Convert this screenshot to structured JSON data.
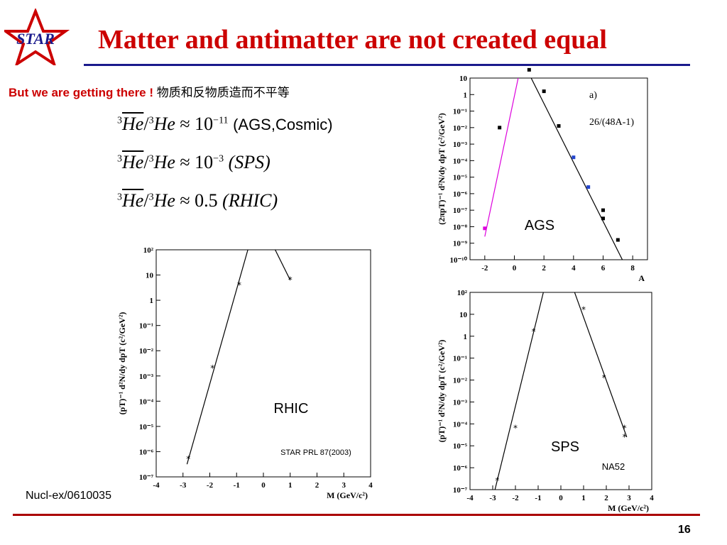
{
  "logo": {
    "text": "STAR"
  },
  "title": "Matter and antimatter are not created equal",
  "subtitle": {
    "en": "But we are getting there !",
    "cn": "物质和反物质造而不平等"
  },
  "equations": [
    {
      "lhs_mass": "3",
      "lhs_sym": "He",
      "rhs_mass": "3",
      "rhs_sym": "He",
      "approx": "≈",
      "base": "10",
      "exp": "−11",
      "note": "(AGS,Cosmic)"
    },
    {
      "lhs_mass": "3",
      "lhs_sym": "He",
      "rhs_mass": "3",
      "rhs_sym": "He",
      "approx": "≈",
      "base": "10",
      "exp": "−3",
      "note": "(SPS)"
    },
    {
      "lhs_mass": "3",
      "lhs_sym": "He",
      "rhs_mass": "3",
      "rhs_sym": "He",
      "approx": "≈",
      "base": "0.5",
      "exp": "",
      "note": "(RHIC)"
    }
  ],
  "footnote": "Nucl-ex/0610035",
  "page_number": "16",
  "chart_data": [
    {
      "id": "rhic",
      "type": "scatter",
      "label": "RHIC",
      "reference": "STAR PRL 87(2003)",
      "xlabel": "M (GeV/c²)",
      "ylabel": "(pT)⁻¹ d²N/dy dpT (c²/GeV²)",
      "xlim": [
        -4,
        4
      ],
      "ylim_log10": [
        -7,
        2
      ],
      "x_ticks": [
        "-4",
        "-3",
        "-2",
        "-1",
        "0",
        "1",
        "2",
        "3",
        "4"
      ],
      "y_ticks": [
        "10²",
        "10",
        "1",
        "10⁻¹",
        "10⁻²",
        "10⁻³",
        "10⁻⁴",
        "10⁻⁵",
        "10⁻⁶",
        "10⁻⁷"
      ],
      "points": [
        {
          "x": -2.8,
          "y_log10": -6.3
        },
        {
          "x": -1.9,
          "y_log10": -2.7
        },
        {
          "x": -0.9,
          "y_log10": 0.6
        },
        {
          "x": 1.0,
          "y_log10": 0.8
        }
      ],
      "lines": [
        [
          {
            "x": -2.85,
            "y_log10": -6.5
          },
          {
            "x": -0.5,
            "y_log10": 2.3
          }
        ],
        [
          {
            "x": 0.3,
            "y_log10": 2.3
          },
          {
            "x": 1.0,
            "y_log10": 0.8
          }
        ]
      ]
    },
    {
      "id": "ags",
      "type": "scatter",
      "label": "AGS",
      "panel_tag": "a)",
      "fit_note": "26/(48A-1)",
      "xlabel": "A",
      "ylabel": "(2πpT)⁻¹ d²N/dy dpT (c²/GeV²)",
      "xlim": [
        -3,
        9
      ],
      "ylim_log10": [
        -10,
        1
      ],
      "x_ticks": [
        "-2",
        "0",
        "2",
        "4",
        "6",
        "8"
      ],
      "y_ticks": [
        "10",
        "1",
        "10⁻¹",
        "10⁻²",
        "10⁻³",
        "10⁻⁴",
        "10⁻⁵",
        "10⁻⁶",
        "10⁻⁷",
        "10⁻⁸",
        "10⁻⁹",
        "10⁻¹⁰"
      ],
      "series": [
        {
          "name": "matter",
          "color": "#000000",
          "points": [
            {
              "x": 1,
              "y_log10": 1.5
            },
            {
              "x": 2,
              "y_log10": 0.2
            },
            {
              "x": 3,
              "y_log10": -1.9
            },
            {
              "x": 6,
              "y_log10": -7.0
            },
            {
              "x": 6,
              "y_log10": -7.5
            },
            {
              "x": 7,
              "y_log10": -8.8
            },
            {
              "x": -1,
              "y_log10": -2.0
            }
          ]
        },
        {
          "name": "blue",
          "color": "#2244cc",
          "points": [
            {
              "x": 4,
              "y_log10": -3.8
            },
            {
              "x": 5,
              "y_log10": -5.6
            }
          ]
        },
        {
          "name": "antimatter",
          "color": "#dd00dd",
          "points": [
            {
              "x": -2,
              "y_log10": -8.1
            }
          ]
        }
      ],
      "lines": [
        {
          "color": "#000000",
          "points": [
            {
              "x": 0.8,
              "y_log10": 1.6
            },
            {
              "x": 7.3,
              "y_log10": -10
            }
          ]
        },
        {
          "color": "#dd00dd",
          "points": [
            {
              "x": -2,
              "y_log10": -8.6
            },
            {
              "x": 0.4,
              "y_log10": 1.6
            }
          ]
        }
      ]
    },
    {
      "id": "sps",
      "type": "scatter",
      "label": "SPS",
      "reference": "NA52",
      "xlabel": "M (GeV/c²)",
      "ylabel": "(pT)⁻¹ d²N/dy dpT (c²/GeV²)",
      "xlim": [
        -4,
        4
      ],
      "ylim_log10": [
        -7,
        2
      ],
      "x_ticks": [
        "-4",
        "-3",
        "-2",
        "-1",
        "0",
        "1",
        "2",
        "3",
        "4"
      ],
      "y_ticks": [
        "10²",
        "10",
        "1",
        "10⁻¹",
        "10⁻²",
        "10⁻³",
        "10⁻⁴",
        "10⁻⁵",
        "10⁻⁶",
        "10⁻⁷"
      ],
      "points": [
        {
          "x": -2.8,
          "y_log10": -6.6
        },
        {
          "x": -2.0,
          "y_log10": -4.2
        },
        {
          "x": -1.2,
          "y_log10": 0.2
        },
        {
          "x": 1.0,
          "y_log10": 1.2
        },
        {
          "x": 1.9,
          "y_log10": -1.9
        },
        {
          "x": 2.8,
          "y_log10": -4.2
        },
        {
          "x": 2.8,
          "y_log10": -4.6
        }
      ],
      "lines": [
        [
          {
            "x": -2.9,
            "y_log10": -7.0
          },
          {
            "x": -0.7,
            "y_log10": 2.3
          }
        ],
        [
          {
            "x": 0.5,
            "y_log10": 2.3
          },
          {
            "x": 2.9,
            "y_log10": -4.6
          }
        ]
      ]
    }
  ]
}
